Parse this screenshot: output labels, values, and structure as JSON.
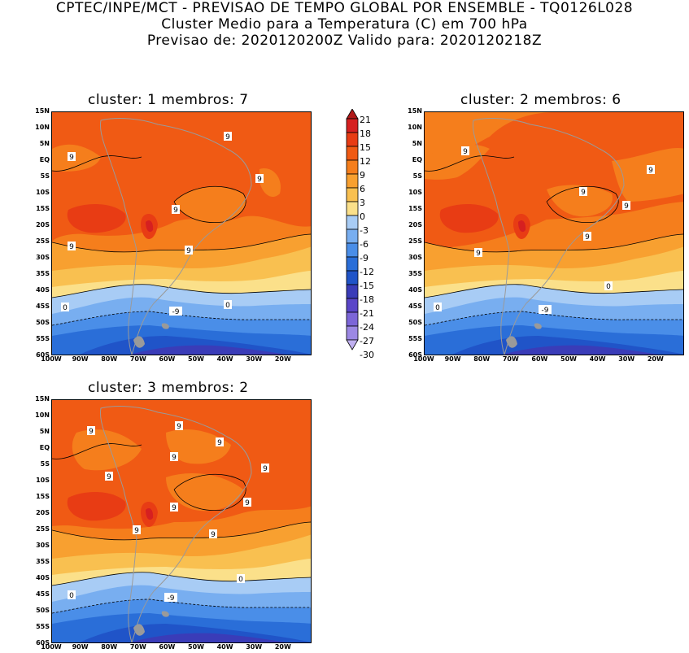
{
  "header": {
    "line1": "CPTEC/INPE/MCT - PREVISAO DE TEMPO GLOBAL POR ENSEMBLE - TQ0126L028",
    "line2": "Cluster Medio para a Temperatura (C) em 700 hPa",
    "line3": "Previsao de: 2020120200Z   Valido para: 2020120218Z"
  },
  "panels": [
    {
      "title": "cluster: 1   membros: 7"
    },
    {
      "title": "cluster: 2   membros: 6"
    },
    {
      "title": "cluster: 3   membros: 2"
    }
  ],
  "lat_labels": [
    "15N",
    "10N",
    "5N",
    "EQ",
    "5S",
    "10S",
    "15S",
    "20S",
    "25S",
    "30S",
    "35S",
    "40S",
    "45S",
    "50S",
    "55S",
    "60S"
  ],
  "lon_labels": [
    "100W",
    "90W",
    "80W",
    "70W",
    "60W",
    "50W",
    "40W",
    "30W",
    "20W"
  ],
  "contour_labels": {
    "c9": "9",
    "c0": "0",
    "cm9": "-9"
  },
  "colorbar": {
    "labels": [
      "21",
      "18",
      "15",
      "12",
      "9",
      "6",
      "3",
      "0",
      "-3",
      "-6",
      "-9",
      "-12",
      "-15",
      "-18",
      "-21",
      "-24",
      "-27",
      "-30"
    ],
    "colors": [
      "#b01818",
      "#d62020",
      "#e83c14",
      "#f05a14",
      "#f57e1c",
      "#f8a030",
      "#f9c050",
      "#fbe08a",
      "#a8ccf5",
      "#78aef0",
      "#4a8ee8",
      "#2a6ed8",
      "#2054c8",
      "#3a3cb8",
      "#5a46c8",
      "#7c66d8",
      "#9c88e4",
      "#c0b0f0"
    ]
  },
  "map_colors": {
    "t12": "#f05a14",
    "t9": "#f57e1c",
    "t6": "#f8a030",
    "t3": "#f9c050",
    "t0": "#fbe08a",
    "tm3": "#a8ccf5",
    "tm6": "#78aef0",
    "tm9": "#4a8ee8",
    "tm12": "#2a6ed8",
    "tm15": "#2054c8",
    "tm18": "#3a3cb8",
    "tm21": "#5a46c8",
    "t15": "#e83c14",
    "t18": "#d62020"
  }
}
